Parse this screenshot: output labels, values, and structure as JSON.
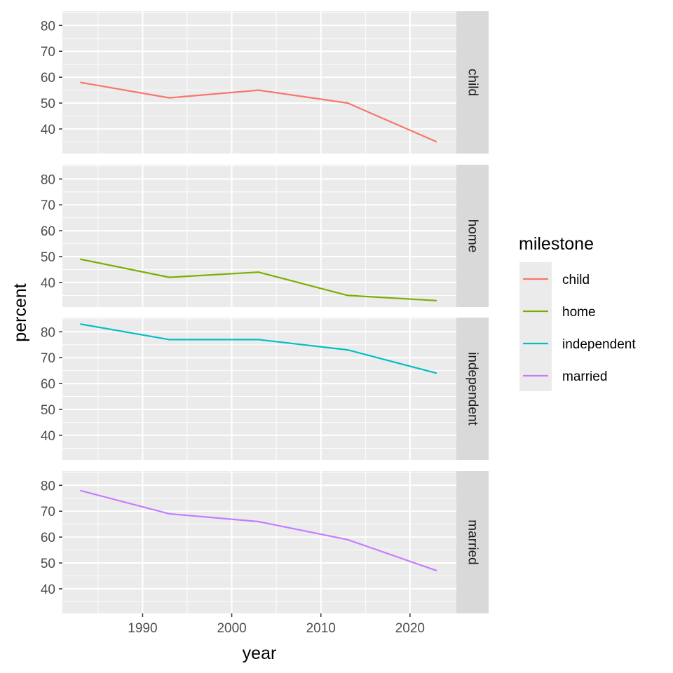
{
  "chart_data": {
    "type": "line",
    "facet_by": "milestone",
    "xlabel": "year",
    "ylabel": "percent",
    "xlim": [
      1981,
      2025.2
    ],
    "ylim": [
      30.5,
      85.5
    ],
    "x_ticks": [
      1990,
      2000,
      2010,
      2020
    ],
    "y_ticks": [
      40,
      50,
      60,
      70,
      80
    ],
    "grid": true,
    "legend": {
      "title": "milestone",
      "position": "right"
    },
    "series": [
      {
        "name": "child",
        "color": "#F8766D",
        "points": [
          [
            1983,
            58
          ],
          [
            1993,
            52
          ],
          [
            2003,
            55
          ],
          [
            2013,
            50
          ],
          [
            2023,
            35
          ]
        ]
      },
      {
        "name": "home",
        "color": "#7CAE00",
        "points": [
          [
            1983,
            49
          ],
          [
            1993,
            42
          ],
          [
            2003,
            44
          ],
          [
            2013,
            35
          ],
          [
            2023,
            33
          ]
        ]
      },
      {
        "name": "independent",
        "color": "#00BFC4",
        "points": [
          [
            1983,
            83
          ],
          [
            1993,
            77
          ],
          [
            2003,
            77
          ],
          [
            2013,
            73
          ],
          [
            2023,
            64
          ]
        ]
      },
      {
        "name": "married",
        "color": "#C77CFF",
        "points": [
          [
            1983,
            78
          ],
          [
            1993,
            69
          ],
          [
            2003,
            66
          ],
          [
            2013,
            59
          ],
          [
            2023,
            47
          ]
        ]
      }
    ]
  }
}
